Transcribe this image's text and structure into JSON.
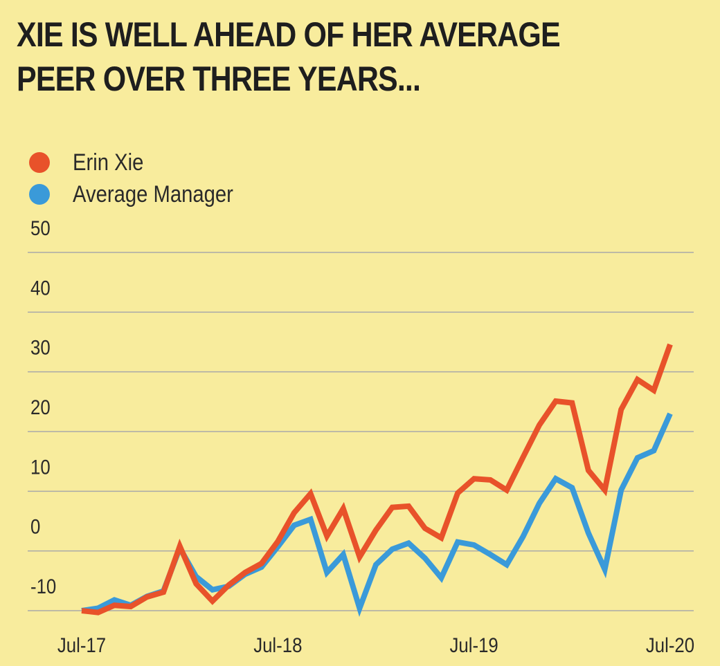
{
  "title": "XIE IS WELL AHEAD OF HER AVERAGE PEER OVER THREE YEARS...",
  "colors": {
    "background": "#f8ec9d",
    "grid": "#a9a9a9"
  },
  "chart_data": {
    "type": "line",
    "title": "XIE IS WELL AHEAD OF HER AVERAGE PEER OVER THREE YEARS...",
    "xlabel": "",
    "ylabel": "",
    "x": [
      "Jul-17",
      "Aug-17",
      "Sep-17",
      "Oct-17",
      "Nov-17",
      "Dec-17",
      "Jan-18",
      "Feb-18",
      "Mar-18",
      "Apr-18",
      "May-18",
      "Jun-18",
      "Jul-18",
      "Aug-18",
      "Sep-18",
      "Oct-18",
      "Nov-18",
      "Dec-18",
      "Jan-19",
      "Feb-19",
      "Mar-19",
      "Apr-19",
      "May-19",
      "Jun-19",
      "Jul-19",
      "Aug-19",
      "Sep-19",
      "Oct-19",
      "Nov-19",
      "Dec-19",
      "Jan-20",
      "Feb-20",
      "Mar-20",
      "Apr-20",
      "May-20",
      "Jun-20",
      "Jul-20"
    ],
    "x_ticks": [
      "Jul-17",
      "Jul-18",
      "Jul-19",
      "Jul-20"
    ],
    "y_ticks": [
      50,
      40,
      30,
      20,
      10,
      0,
      -10
    ],
    "ylim": [
      -10,
      50
    ],
    "grid": true,
    "legend_position": "top-left",
    "series": [
      {
        "name": "Erin Xie",
        "color": "#e8522a",
        "values": [
          -10,
          -10.3,
          -9.1,
          -9.3,
          -7.7,
          -6.9,
          0.8,
          -5.5,
          -8.4,
          -5.7,
          -3.6,
          -2.1,
          1.6,
          6.4,
          9.6,
          2.5,
          7.1,
          -1.0,
          3.5,
          7.3,
          7.5,
          3.8,
          2.2,
          9.7,
          12.1,
          11.9,
          10.2,
          15.7,
          21.1,
          25.1,
          24.8,
          13.5,
          10.2,
          23.7,
          28.7,
          26.9,
          34.6
        ]
      },
      {
        "name": "Average Manager",
        "color": "#3a9ad9",
        "values": [
          -10,
          -9.6,
          -8.2,
          -9.1,
          -7.6,
          -6.7,
          0.5,
          -4.3,
          -6.5,
          -5.9,
          -3.9,
          -2.7,
          0.7,
          4.3,
          5.3,
          -3.6,
          -0.6,
          -9.6,
          -2.3,
          0.3,
          1.3,
          -1.2,
          -4.5,
          1.5,
          1.0,
          -0.6,
          -2.3,
          2.4,
          8.0,
          12.1,
          10.6,
          3.0,
          -3.1,
          10.2,
          15.6,
          16.8,
          23.0
        ]
      }
    ]
  }
}
